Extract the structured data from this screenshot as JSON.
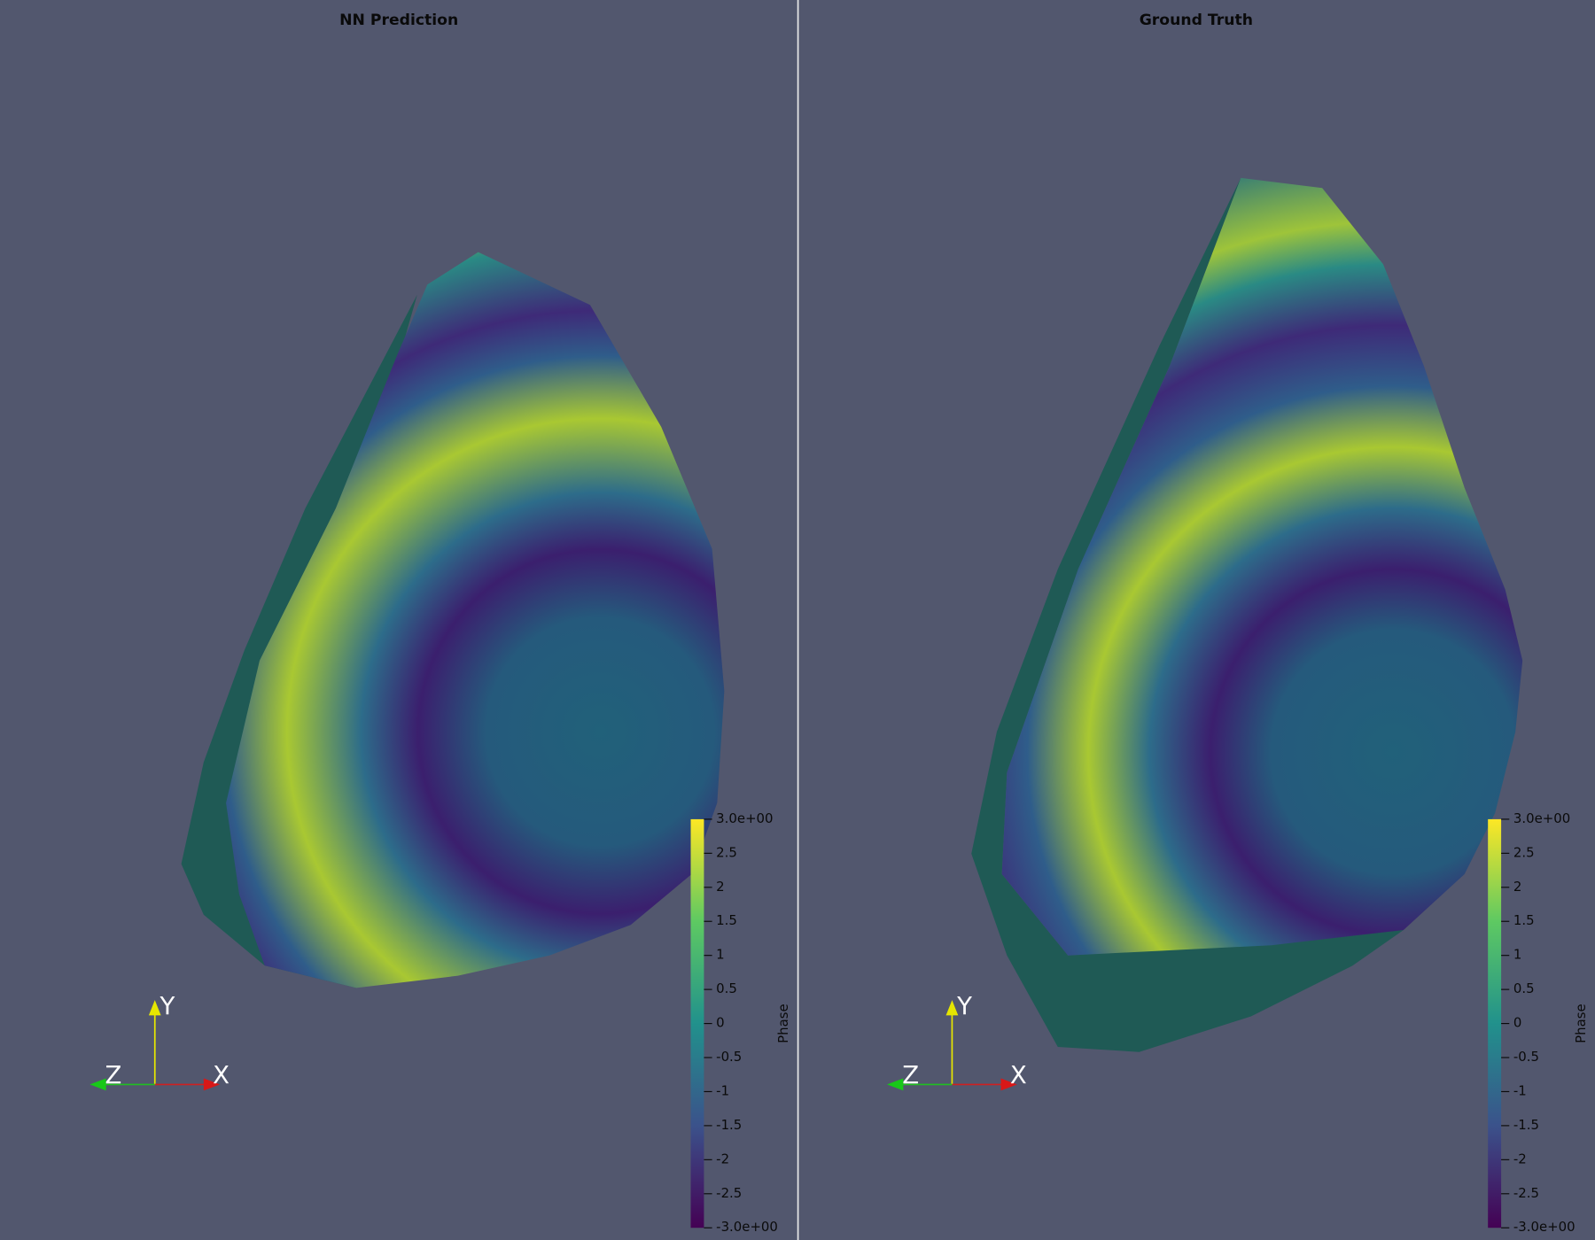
{
  "panels": [
    {
      "title": "NN Prediction",
      "colorbar": {
        "title": "Phase",
        "range": [
          -3,
          3
        ],
        "ticks": [
          {
            "value": 3,
            "label": "3.0e+00"
          },
          2.5,
          2,
          1.5,
          1,
          0.5,
          0,
          -0.5,
          -1,
          -1.5,
          -2,
          -2.5,
          {
            "value": -3,
            "label": "-3.0e+00"
          }
        ]
      },
      "axes": {
        "x": "X",
        "y": "Y",
        "z": "Z"
      }
    },
    {
      "title": "Ground Truth",
      "colorbar": {
        "title": "Phase",
        "range": [
          -3,
          3
        ],
        "ticks": [
          {
            "value": 3,
            "label": "3.0e+00"
          },
          2.5,
          2,
          1.5,
          1,
          0.5,
          0,
          -0.5,
          -1,
          -1.5,
          -2,
          -2.5,
          {
            "value": -3,
            "label": "-3.0e+00"
          }
        ]
      },
      "axes": {
        "x": "X",
        "y": "Y",
        "z": "Z"
      }
    }
  ]
}
